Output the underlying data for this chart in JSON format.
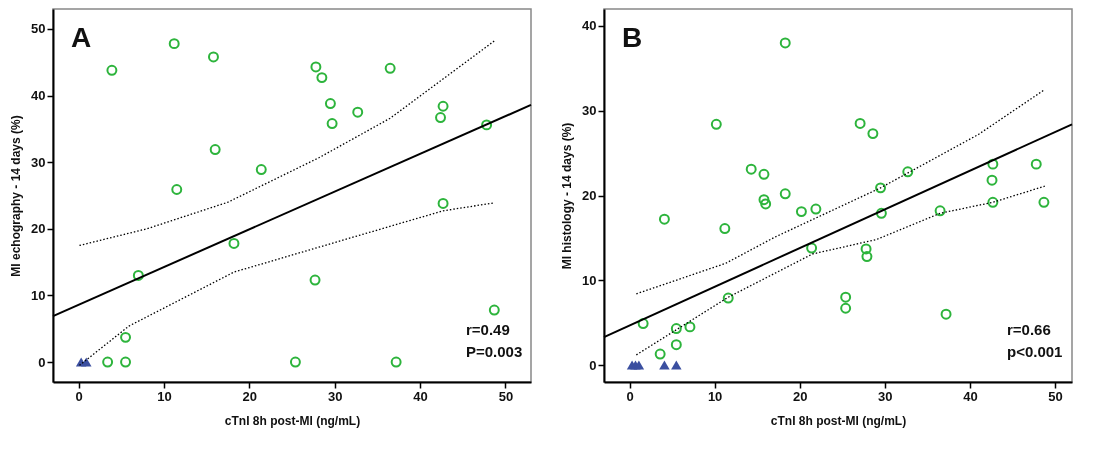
{
  "chart_data": [
    {
      "type": "scatter",
      "xlabel": "cTnI 8h post-MI (ng/mL)",
      "ylabel": "MI echography - 14 days (%)",
      "xlim": [
        -3,
        53
      ],
      "ylim": [
        -3,
        53
      ],
      "xticks": [
        0,
        10,
        20,
        30,
        40,
        50
      ],
      "yticks": [
        0,
        10,
        20,
        30,
        40,
        50
      ],
      "grid": false,
      "annotations": [
        "A",
        "r=0.49",
        "P=0.003"
      ],
      "series": [
        {
          "marker": "circle",
          "color": "#2db43c",
          "x": [
            3.9,
            11.2,
            15.8,
            27.8,
            28.5,
            36.5,
            29.5,
            29.7,
            32.7,
            42.7,
            42.4,
            47.8,
            16.0,
            21.4,
            11.5,
            42.7,
            18.2,
            7.0,
            27.7,
            48.7,
            5.5,
            3.4,
            5.5,
            25.4,
            37.2
          ],
          "values": [
            43.8,
            47.8,
            45.8,
            44.3,
            42.7,
            44.1,
            38.8,
            35.8,
            37.5,
            38.4,
            36.7,
            35.6,
            31.9,
            28.9,
            25.9,
            23.8,
            17.8,
            13.0,
            12.3,
            7.8,
            3.7,
            0,
            0,
            0,
            0
          ]
        },
        {
          "marker": "triangle",
          "color": "#3b4fa0",
          "x": [
            0.3,
            0.9
          ],
          "values": [
            0,
            0
          ]
        },
        {
          "type": "line",
          "marker": "none",
          "line_style": "solid",
          "color": "#000000",
          "x": [
            -3,
            53
          ],
          "values": [
            6.9,
            38.6
          ]
        },
        {
          "type": "line",
          "marker": "none",
          "line_style": "dotted",
          "color": "#000000",
          "x": [
            0.1,
            8,
            17.5,
            28.2,
            36.5,
            48.7
          ],
          "values": [
            17.5,
            20,
            24,
            30.7,
            36.6,
            48.2
          ]
        },
        {
          "type": "line",
          "marker": "none",
          "line_style": "dotted",
          "color": "#000000",
          "x": [
            0.1,
            5.9,
            18.2,
            29.9,
            42.7,
            48.7
          ],
          "values": [
            -0.5,
            5.4,
            13.5,
            17.9,
            22.7,
            23.9
          ]
        }
      ]
    },
    {
      "type": "scatter",
      "xlabel": "cTnI 8h post-MI (ng/mL)",
      "ylabel": "MI histology - 14 days (%)",
      "xlim": [
        -3,
        52
      ],
      "ylim": [
        -2,
        42
      ],
      "xticks": [
        0,
        10,
        20,
        30,
        40,
        50
      ],
      "yticks": [
        0,
        10,
        20,
        30,
        40
      ],
      "grid": false,
      "annotations": [
        "B",
        "r=0.66",
        "p<0.001"
      ],
      "series": [
        {
          "marker": "circle",
          "color": "#2db43c",
          "x": [
            18.3,
            10.2,
            27.1,
            28.6,
            14.3,
            15.8,
            32.7,
            42.7,
            47.8,
            42.6,
            29.5,
            18.3,
            15.8,
            16.0,
            20.2,
            21.9,
            29.6,
            36.5,
            42.7,
            48.7,
            4.1,
            11.2,
            21.4,
            27.8,
            27.9,
            11.6,
            25.4,
            25.4,
            37.2,
            1.6,
            5.5,
            7.1,
            5.5,
            3.6
          ],
          "values": [
            38.0,
            28.4,
            28.5,
            27.3,
            23.1,
            22.5,
            22.8,
            23.7,
            23.7,
            21.8,
            20.9,
            20.2,
            19.5,
            19.0,
            18.1,
            18.4,
            17.9,
            18.2,
            19.2,
            19.2,
            17.2,
            16.1,
            13.8,
            13.7,
            12.8,
            7.9,
            8.0,
            6.7,
            6.0,
            4.9,
            4.3,
            4.5,
            2.4,
            1.3
          ]
        },
        {
          "marker": "triangle",
          "color": "#3b4fa0",
          "x": [
            0.3,
            0.7,
            1.1,
            4.1,
            5.5
          ],
          "values": [
            0,
            0,
            0,
            0,
            0
          ]
        },
        {
          "type": "line",
          "marker": "none",
          "line_style": "solid",
          "color": "#000000",
          "x": [
            -3,
            52
          ],
          "values": [
            3.3,
            28.4
          ]
        },
        {
          "type": "line",
          "marker": "none",
          "line_style": "dotted",
          "color": "#000000",
          "x": [
            0.8,
            11.3,
            17.1,
            29.5,
            41.0,
            48.8
          ],
          "values": [
            8.4,
            12.0,
            15.1,
            20.9,
            27.2,
            32.5
          ]
        },
        {
          "type": "line",
          "marker": "none",
          "line_style": "dotted",
          "color": "#000000",
          "x": [
            0.8,
            11.6,
            21.5,
            29.0,
            36.5,
            42.7,
            48.8
          ],
          "values": [
            1.2,
            8.0,
            13.1,
            14.8,
            17.9,
            19.2,
            21.1
          ]
        }
      ]
    }
  ]
}
